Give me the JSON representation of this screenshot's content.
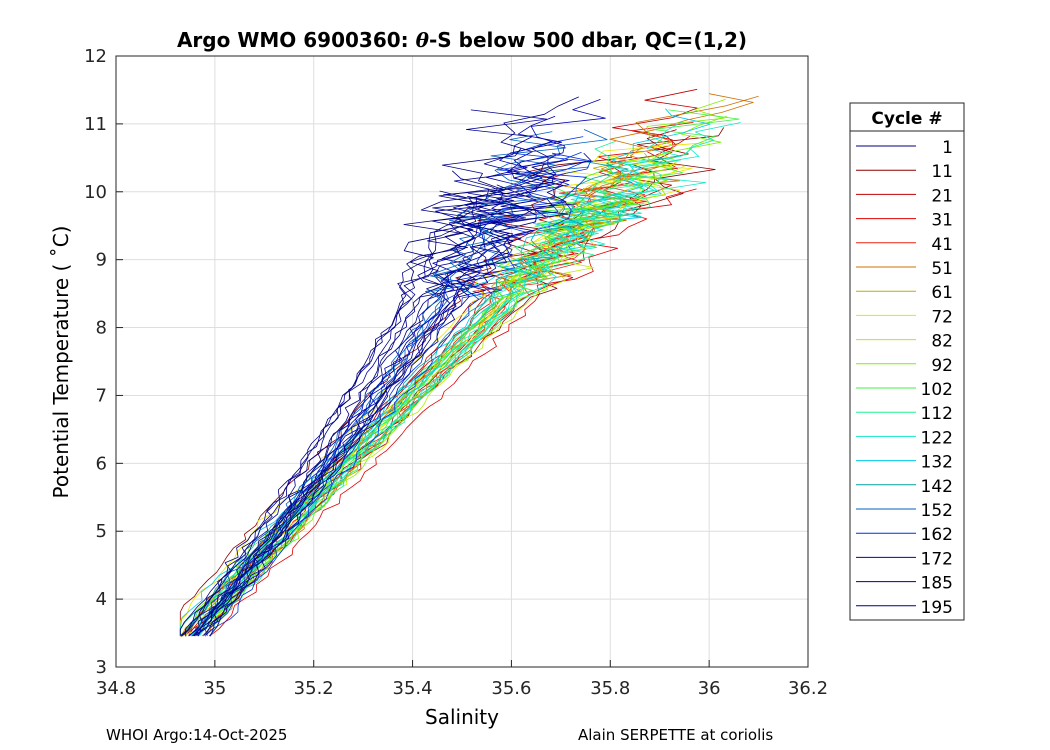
{
  "chart_data": {
    "type": "line",
    "title_prefix": "Argo WMO 6900360: ",
    "title_theta": "θ",
    "title_suffix": "-S below 500 dbar,  QC=(1,2)",
    "xlabel": "Salinity",
    "ylabel": "Potential Temperature ( ˚C)",
    "xlim": [
      34.8,
      36.2
    ],
    "ylim": [
      3,
      12
    ],
    "xticks": [
      "34.8",
      "35",
      "35.2",
      "35.4",
      "35.6",
      "35.8",
      "36",
      "36.2"
    ],
    "yticks": [
      "3",
      "4",
      "5",
      "6",
      "7",
      "8",
      "9",
      "10",
      "11",
      "12"
    ],
    "grid": true,
    "legend_title": "Cycle #",
    "legend_position": "right",
    "series": [
      {
        "name": "1",
        "color": "#000083"
      },
      {
        "name": "11",
        "color": "#8b0000"
      },
      {
        "name": "21",
        "color": "#c00000"
      },
      {
        "name": "31",
        "color": "#e00000"
      },
      {
        "name": "41",
        "color": "#ef2010"
      },
      {
        "name": "51",
        "color": "#d07000"
      },
      {
        "name": "61",
        "color": "#c8a800"
      },
      {
        "name": "72",
        "color": "#e6e600"
      },
      {
        "name": "82",
        "color": "#b8ee00"
      },
      {
        "name": "92",
        "color": "#80f000"
      },
      {
        "name": "102",
        "color": "#40f040"
      },
      {
        "name": "112",
        "color": "#20f090"
      },
      {
        "name": "122",
        "color": "#10e8c8"
      },
      {
        "name": "132",
        "color": "#00c8e8"
      },
      {
        "name": "142",
        "color": "#00a0a0"
      },
      {
        "name": "152",
        "color": "#0060c0"
      },
      {
        "name": "162",
        "color": "#0030e0"
      },
      {
        "name": "172",
        "color": "#0000b0"
      },
      {
        "name": "185",
        "color": "#000090"
      },
      {
        "name": "195",
        "color": "#000080"
      }
    ]
  },
  "footer": {
    "left": "WHOI Argo:14-Oct-2025",
    "right": "Alain SERPETTE at coriolis"
  }
}
